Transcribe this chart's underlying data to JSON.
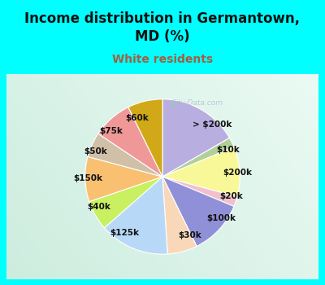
{
  "title": "Income distribution in Germantown,\nMD (%)",
  "subtitle": "White residents",
  "title_color": "#111111",
  "subtitle_color": "#a06040",
  "background_color": "#00ffff",
  "chart_panel_color_left": "#c8eee0",
  "chart_panel_color_right": "#e8f8f4",
  "labels": [
    "> $200k",
    "$10k",
    "$200k",
    "$20k",
    "$100k",
    "$30k",
    "$125k",
    "$40k",
    "$150k",
    "$50k",
    "$75k",
    "$60k"
  ],
  "values": [
    16,
    2,
    10,
    2,
    11,
    6,
    14,
    6,
    9,
    5,
    8,
    7
  ],
  "colors": [
    "#b8aee0",
    "#b0d098",
    "#f8f898",
    "#f0c0cc",
    "#9090d8",
    "#f8d8b8",
    "#b8d8f8",
    "#c8f060",
    "#f8c070",
    "#d0c0a8",
    "#f09898",
    "#d0a818"
  ],
  "label_fontsize": 7.5,
  "title_fontsize": 12,
  "subtitle_fontsize": 10,
  "watermark_text": "City-Data.com",
  "watermark_color": "#aabbcc",
  "watermark_alpha": 0.75
}
